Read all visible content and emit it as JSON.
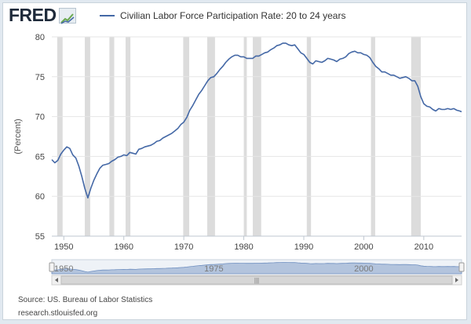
{
  "header": {
    "logo_text": "FRED",
    "logo_icon": "fred-chart-logo-icon"
  },
  "chart_data": {
    "type": "line",
    "title": "",
    "legend": "top-left",
    "series": [
      {
        "name": "Civilian Labor Force Participation Rate: 20 to 24 years",
        "color": "#4468a6",
        "x": [
          1948.0,
          1948.5,
          1949.0,
          1949.5,
          1950.0,
          1950.5,
          1951.0,
          1951.5,
          1952.0,
          1952.5,
          1953.0,
          1953.5,
          1954.0,
          1954.5,
          1955.0,
          1955.5,
          1956.0,
          1956.5,
          1957.0,
          1957.5,
          1958.0,
          1958.5,
          1959.0,
          1959.5,
          1960.0,
          1960.5,
          1961.0,
          1961.5,
          1962.0,
          1962.5,
          1963.0,
          1963.5,
          1964.0,
          1964.5,
          1965.0,
          1965.5,
          1966.0,
          1966.5,
          1967.0,
          1967.5,
          1968.0,
          1968.5,
          1969.0,
          1969.5,
          1970.0,
          1970.5,
          1971.0,
          1971.5,
          1972.0,
          1972.5,
          1973.0,
          1973.5,
          1974.0,
          1974.5,
          1975.0,
          1975.5,
          1976.0,
          1976.5,
          1977.0,
          1977.5,
          1978.0,
          1978.5,
          1979.0,
          1979.5,
          1980.0,
          1980.5,
          1981.0,
          1981.5,
          1982.0,
          1982.5,
          1983.0,
          1983.5,
          1984.0,
          1984.5,
          1985.0,
          1985.5,
          1986.0,
          1986.5,
          1987.0,
          1987.5,
          1988.0,
          1988.5,
          1989.0,
          1989.5,
          1990.0,
          1990.5,
          1991.0,
          1991.5,
          1992.0,
          1992.5,
          1993.0,
          1993.5,
          1994.0,
          1994.5,
          1995.0,
          1995.5,
          1996.0,
          1996.5,
          1997.0,
          1997.5,
          1998.0,
          1998.5,
          1999.0,
          1999.5,
          2000.0,
          2000.5,
          2001.0,
          2001.5,
          2002.0,
          2002.5,
          2003.0,
          2003.5,
          2004.0,
          2004.5,
          2005.0,
          2005.5,
          2006.0,
          2006.5,
          2007.0,
          2007.5,
          2008.0,
          2008.5,
          2009.0,
          2009.5,
          2010.0,
          2010.5,
          2011.0,
          2011.5,
          2012.0,
          2012.5,
          2013.0,
          2013.5,
          2014.0,
          2014.5,
          2015.0,
          2015.5,
          2016.0,
          2016.3
        ],
        "values": [
          64.6,
          64.2,
          64.5,
          65.3,
          65.8,
          66.2,
          66.0,
          65.2,
          64.8,
          63.8,
          62.5,
          61.0,
          59.8,
          61.0,
          62.0,
          62.8,
          63.5,
          63.9,
          64.0,
          64.1,
          64.4,
          64.6,
          64.9,
          65.0,
          65.2,
          65.1,
          65.5,
          65.4,
          65.3,
          65.9,
          66.0,
          66.2,
          66.3,
          66.4,
          66.6,
          66.9,
          67.0,
          67.3,
          67.5,
          67.7,
          67.9,
          68.2,
          68.5,
          69.0,
          69.3,
          69.9,
          70.8,
          71.4,
          72.1,
          72.8,
          73.3,
          73.9,
          74.5,
          74.9,
          75.0,
          75.4,
          75.9,
          76.3,
          76.8,
          77.2,
          77.5,
          77.7,
          77.7,
          77.5,
          77.5,
          77.3,
          77.3,
          77.3,
          77.6,
          77.6,
          77.8,
          78.0,
          78.1,
          78.4,
          78.6,
          78.9,
          79.0,
          79.2,
          79.2,
          79.0,
          78.9,
          79.0,
          78.5,
          78.0,
          77.8,
          77.3,
          76.8,
          76.6,
          77.0,
          76.9,
          76.8,
          77.0,
          77.3,
          77.2,
          77.1,
          76.9,
          77.2,
          77.3,
          77.5,
          77.9,
          78.1,
          78.2,
          78.0,
          78.0,
          77.8,
          77.7,
          77.4,
          76.8,
          76.3,
          76.0,
          75.6,
          75.6,
          75.4,
          75.2,
          75.2,
          75.0,
          74.8,
          74.9,
          75.0,
          74.8,
          74.5,
          74.5,
          73.8,
          72.5,
          71.6,
          71.3,
          71.2,
          70.9,
          70.7,
          71.0,
          70.9,
          70.9,
          71.0,
          70.9,
          71.0,
          70.8,
          70.7,
          70.6
        ]
      }
    ],
    "recessions": [
      [
        1948.9,
        1949.8
      ],
      [
        1953.5,
        1954.4
      ],
      [
        1957.6,
        1958.4
      ],
      [
        1960.3,
        1961.1
      ],
      [
        1969.9,
        1970.9
      ],
      [
        1973.9,
        1975.2
      ],
      [
        1980.0,
        1980.5
      ],
      [
        1981.5,
        1982.9
      ],
      [
        1990.5,
        1991.2
      ],
      [
        2001.2,
        2001.9
      ],
      [
        2007.9,
        2009.5
      ]
    ],
    "xlim": [
      1948,
      2016.3
    ],
    "ylim": [
      55,
      80
    ],
    "ylabel": "(Percent)",
    "xlabel": "",
    "x_ticks": [
      1950,
      1960,
      1970,
      1980,
      1990,
      2000,
      2010
    ],
    "y_ticks": [
      55,
      60,
      65,
      70,
      75,
      80
    ],
    "grid": "horizontal",
    "navigator": {
      "ticks": [
        1950,
        1975,
        2000
      ],
      "scroll_grip": "|||"
    }
  },
  "footer": {
    "source": "Source: US. Bureau of Labor Statistics",
    "site": "research.stlouisfed.org"
  },
  "colors": {
    "line": "#4468a6",
    "recession": "#dcdcdc",
    "grid": "#e6e6e6",
    "navigator_fill": "#b3c4dd"
  }
}
